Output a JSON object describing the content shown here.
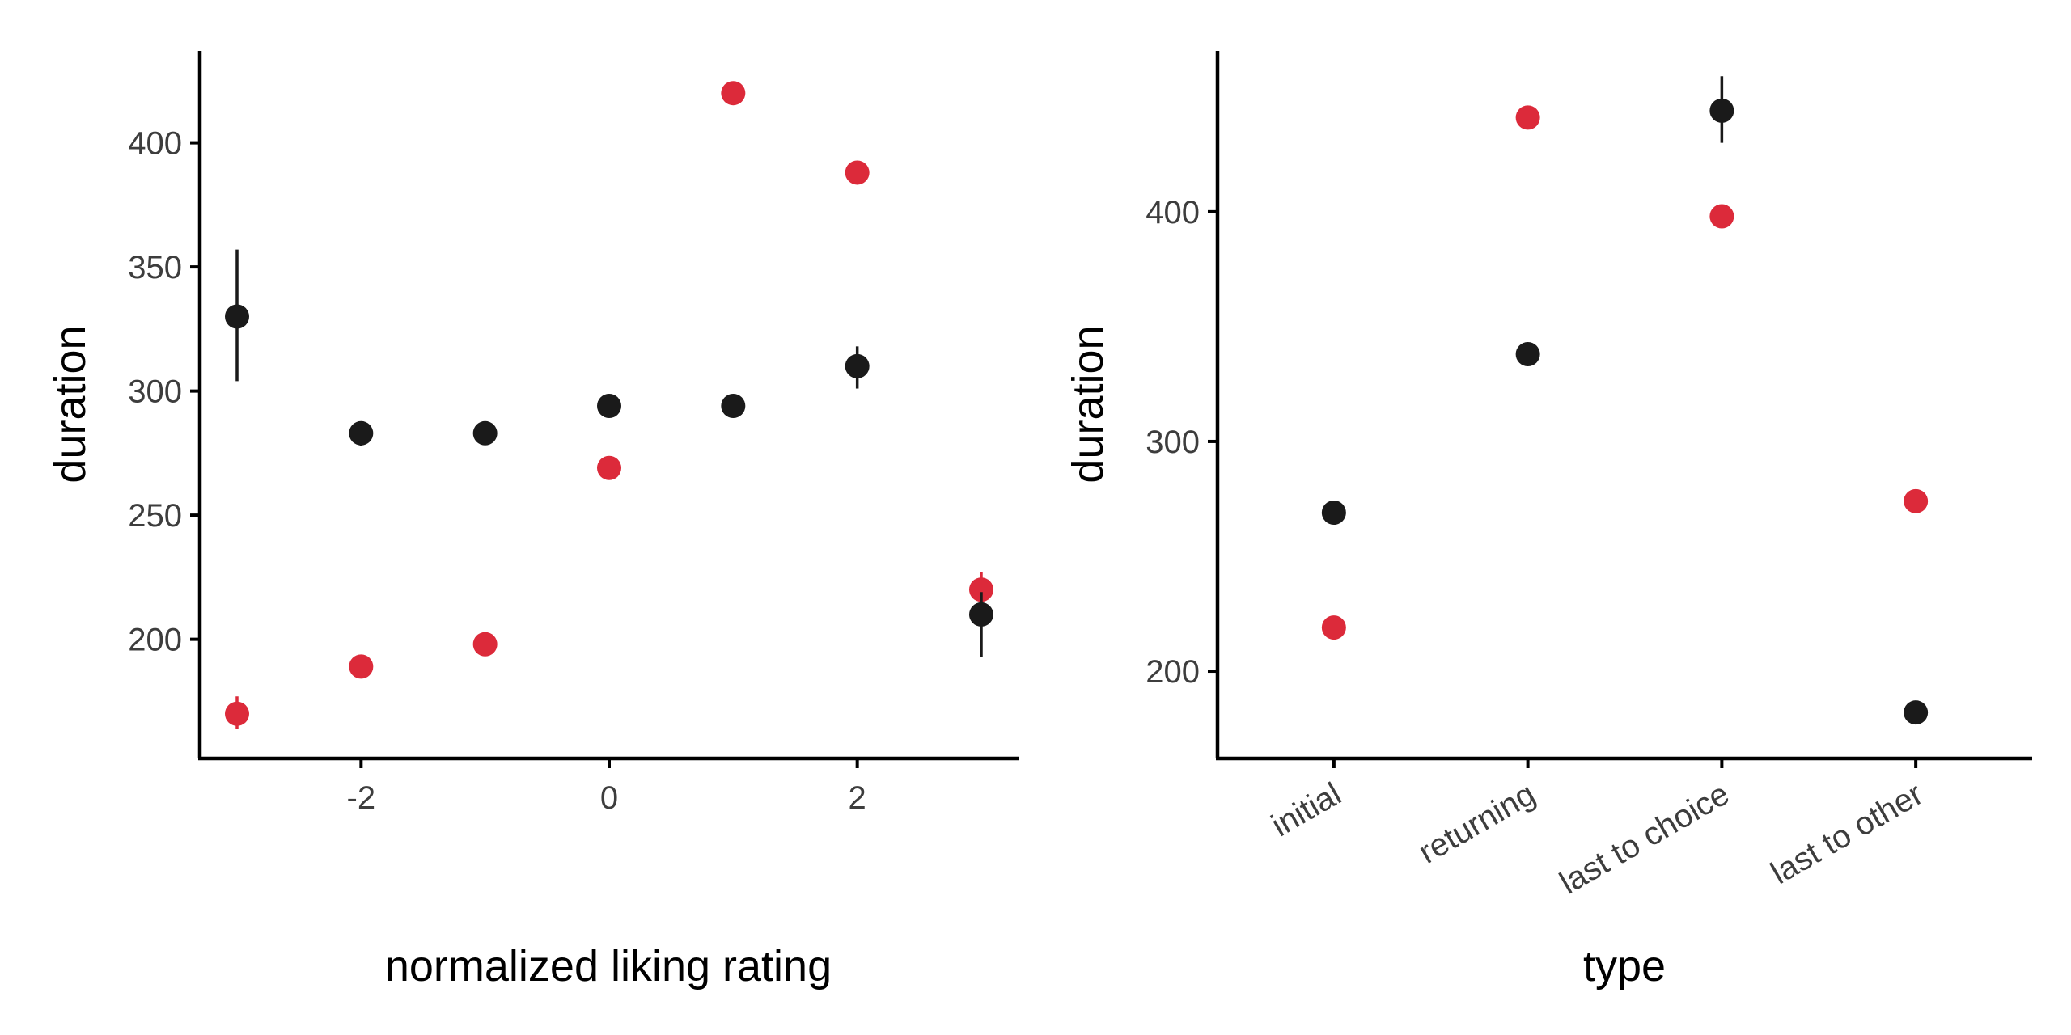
{
  "series_colors": {
    "black": "#1a1a1a",
    "red": "#dc2a3a"
  },
  "chart_data": [
    {
      "type": "scatter",
      "xlabel": "normalized liking rating",
      "ylabel": "duration",
      "xlim": [
        -3.3,
        3.3
      ],
      "ylim": [
        152,
        437
      ],
      "x_ticks": [
        -2,
        0,
        2
      ],
      "y_ticks": [
        200,
        250,
        300,
        350,
        400
      ],
      "grid": false,
      "legend": "none",
      "series": [
        {
          "color": "black",
          "points": [
            {
              "x": -3,
              "y": 330,
              "lo": 304,
              "hi": 357
            },
            {
              "x": -2,
              "y": 283,
              "lo": 278,
              "hi": 287
            },
            {
              "x": -1,
              "y": 283,
              "lo": 281,
              "hi": 285
            },
            {
              "x": 0,
              "y": 294,
              "lo": 292,
              "hi": 296
            },
            {
              "x": 1,
              "y": 294,
              "lo": 292,
              "hi": 296
            },
            {
              "x": 2,
              "y": 310,
              "lo": 301,
              "hi": 318
            },
            {
              "x": 3,
              "y": 210,
              "lo": 193,
              "hi": 219
            }
          ]
        },
        {
          "color": "red",
          "points": [
            {
              "x": -3,
              "y": 170,
              "lo": 164,
              "hi": 177
            },
            {
              "x": -2,
              "y": 189,
              "lo": 187,
              "hi": 191
            },
            {
              "x": -1,
              "y": 198,
              "lo": 196,
              "hi": 200
            },
            {
              "x": 0,
              "y": 269,
              "lo": 267,
              "hi": 271
            },
            {
              "x": 1,
              "y": 420,
              "lo": 418,
              "hi": 422
            },
            {
              "x": 2,
              "y": 388,
              "lo": 386,
              "hi": 390
            },
            {
              "x": 3,
              "y": 220,
              "lo": 216,
              "hi": 227
            }
          ]
        }
      ]
    },
    {
      "type": "scatter",
      "xlabel": "type",
      "ylabel": "duration",
      "categories": [
        "initial",
        "returning",
        "last to choice",
        "last to other"
      ],
      "ylim": [
        162,
        470
      ],
      "y_ticks": [
        200,
        300,
        400
      ],
      "grid": false,
      "legend": "none",
      "series": [
        {
          "color": "black",
          "points": [
            {
              "category": "initial",
              "y": 269,
              "lo": 267,
              "hi": 271
            },
            {
              "category": "returning",
              "y": 338,
              "lo": 336,
              "hi": 340
            },
            {
              "category": "last to choice",
              "y": 444,
              "lo": 430,
              "hi": 459
            },
            {
              "category": "last to other",
              "y": 182,
              "lo": 180,
              "hi": 184
            }
          ]
        },
        {
          "color": "red",
          "points": [
            {
              "category": "initial",
              "y": 219,
              "lo": 217,
              "hi": 221
            },
            {
              "category": "returning",
              "y": 441,
              "lo": 439,
              "hi": 443
            },
            {
              "category": "last to choice",
              "y": 398,
              "lo": 396,
              "hi": 400
            },
            {
              "category": "last to other",
              "y": 274,
              "lo": 272,
              "hi": 276
            }
          ]
        }
      ]
    }
  ]
}
